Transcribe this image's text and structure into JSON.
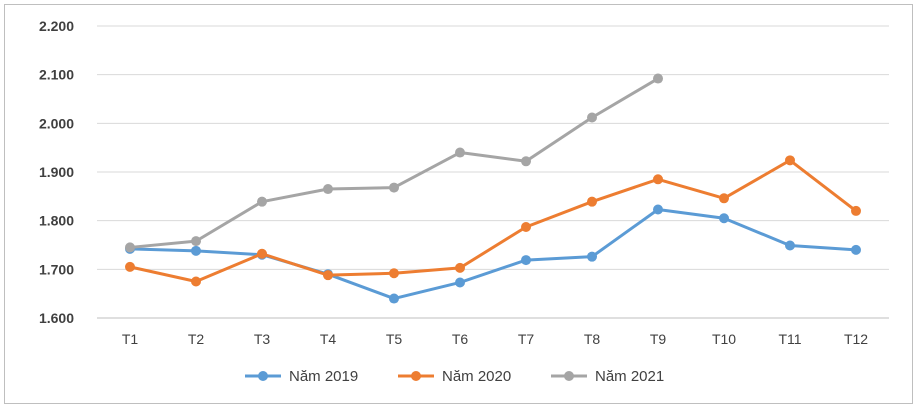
{
  "chart_data": {
    "type": "line",
    "title": "",
    "xlabel": "",
    "ylabel": "",
    "categories": [
      "T1",
      "T2",
      "T3",
      "T4",
      "T5",
      "T6",
      "T7",
      "T8",
      "T9",
      "T10",
      "T11",
      "T12"
    ],
    "ylim": [
      1600,
      2200
    ],
    "yticks": [
      1600,
      1700,
      1800,
      1900,
      2000,
      2100,
      2200
    ],
    "ytick_labels": [
      "1.600",
      "1.700",
      "1.800",
      "1.900",
      "2.000",
      "2.100",
      "2.200"
    ],
    "grid": true,
    "legend_position": "bottom",
    "series": [
      {
        "name": "Năm 2019",
        "color": "#5b9bd5",
        "values": [
          1742,
          1738,
          1730,
          1690,
          1640,
          1673,
          1719,
          1726,
          1823,
          1805,
          1749,
          1740
        ]
      },
      {
        "name": "Năm 2020",
        "color": "#ed7d31",
        "values": [
          1705,
          1675,
          1732,
          1688,
          1692,
          1703,
          1787,
          1839,
          1885,
          1846,
          1924,
          1820
        ]
      },
      {
        "name": "Năm 2021",
        "color": "#a5a5a5",
        "values": [
          1745,
          1758,
          1839,
          1865,
          1868,
          1940,
          1922,
          2012,
          2092,
          null,
          null,
          null
        ]
      }
    ]
  }
}
